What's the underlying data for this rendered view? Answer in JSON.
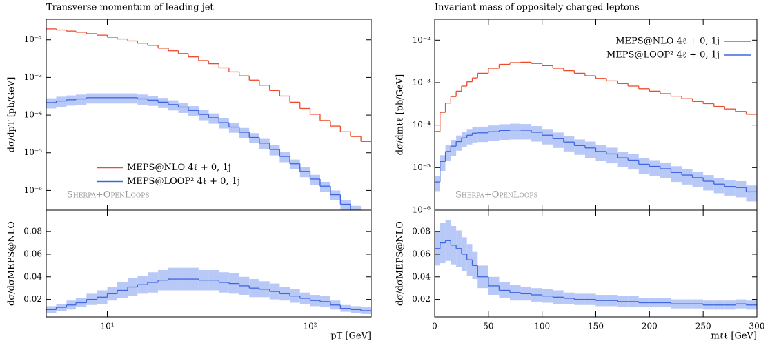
{
  "chart_data": [
    {
      "type": "histogram",
      "title": "Transverse momentum of leading jet",
      "ylabel": "dσ/dpT [pb/GeV]",
      "xlog": true,
      "ylog": true,
      "xlim": [
        5,
        200
      ],
      "ylim": [
        3e-07,
        0.035
      ],
      "xticks": [
        {
          "value": 10,
          "label": "10¹"
        },
        {
          "value": 100,
          "label": "10²"
        }
      ],
      "yticks": [
        {
          "value": 1e-06,
          "label": "10⁻⁶"
        },
        {
          "value": 1e-05,
          "label": "10⁻⁵"
        },
        {
          "value": 0.0001,
          "label": "10⁻⁴"
        },
        {
          "value": 0.001,
          "label": "10⁻³"
        },
        {
          "value": 0.01,
          "label": "10⁻²"
        }
      ],
      "legend": "center-left",
      "annotation": "Sherpa+OpenLoops",
      "bins": [
        5,
        5.6,
        6.3,
        7,
        7.9,
        8.9,
        10,
        11.2,
        12.6,
        14.1,
        15.8,
        17.8,
        20,
        22.4,
        25.1,
        28.2,
        31.6,
        35.5,
        39.8,
        44.7,
        50.1,
        56.2,
        63.1,
        70.8,
        79.4,
        89.1,
        100,
        112,
        126,
        141,
        158,
        178,
        200
      ],
      "series": [
        {
          "name": "MEPS@NLO 4ℓ + 0, 1j",
          "color": "#ee4a2c",
          "values": [
            0.0195,
            0.0182,
            0.017,
            0.0158,
            0.0145,
            0.0132,
            0.0117,
            0.0105,
            0.0093,
            0.0081,
            0.0071,
            0.006,
            0.0051,
            0.0043,
            0.0035,
            0.0028,
            0.0023,
            0.0018,
            0.0014,
            0.0011,
            0.00085,
            0.00062,
            0.00045,
            0.00032,
            0.00022,
            0.00015,
            0.000105,
            7.2e-05,
            5.1e-05,
            3.6e-05,
            2.7e-05,
            2e-05
          ]
        },
        {
          "name": "MEPS@LOOP² 4ℓ + 0, 1j",
          "color": "#3f66e0",
          "band_color": "#b9c9f7",
          "values": [
            0.000215,
            0.000237,
            0.000255,
            0.000269,
            0.00029,
            0.00029,
            0.00029,
            0.00029,
            0.00029,
            0.00027,
            0.00025,
            0.00022,
            0.00019,
            0.000163,
            0.000133,
            0.000104,
            8.5e-05,
            6.3e-05,
            4.8e-05,
            3.5e-05,
            2.55e-05,
            1.8e-05,
            1.22e-05,
            8e-06,
            5.1e-06,
            3.2e-06,
            2e-06,
            1.3e-06,
            7.7e-07,
            4.3e-07,
            3e-07,
            2e-07
          ],
          "errors": [
            6.5e-05,
            7.1e-05,
            7.7e-05,
            8.1e-05,
            8.7e-05,
            8.7e-05,
            8.7e-05,
            8.7e-05,
            8.7e-05,
            8.1e-05,
            7.5e-05,
            6.6e-05,
            5.7e-05,
            4.9e-05,
            4e-05,
            3.1e-05,
            2.6e-05,
            1.9e-05,
            1.4e-05,
            1.05e-05,
            7.7e-06,
            5.4e-06,
            3.7e-06,
            2.4e-06,
            1.5e-06,
            9.6e-07,
            6e-07,
            3.9e-07,
            2.3e-07,
            1.3e-07,
            9e-08,
            6e-08
          ]
        }
      ]
    },
    {
      "type": "histogram",
      "ylabel": "dσ/dσMEPS@NLO",
      "xlabel": "pT [GeV]",
      "xlog": true,
      "ylog": false,
      "xlim": [
        5,
        200
      ],
      "ylim": [
        0.0045,
        0.099
      ],
      "xticks": [
        {
          "value": 10,
          "label": "10¹"
        },
        {
          "value": 100,
          "label": "10²"
        }
      ],
      "yticks": [
        0.02,
        0.04,
        0.06,
        0.08
      ],
      "bins": [
        5,
        5.6,
        6.3,
        7,
        7.9,
        8.9,
        10,
        11.2,
        12.6,
        14.1,
        15.8,
        17.8,
        20,
        22.4,
        25.1,
        28.2,
        31.6,
        35.5,
        39.8,
        44.7,
        50.1,
        56.2,
        63.1,
        70.8,
        79.4,
        89.1,
        100,
        112,
        126,
        141,
        158,
        178,
        200
      ],
      "series": [
        {
          "color": "#3f66e0",
          "band_color": "#b9c9f7",
          "values": [
            0.011,
            0.013,
            0.015,
            0.017,
            0.02,
            0.022,
            0.025,
            0.028,
            0.031,
            0.033,
            0.035,
            0.037,
            0.038,
            0.038,
            0.038,
            0.037,
            0.037,
            0.035,
            0.034,
            0.032,
            0.03,
            0.029,
            0.027,
            0.025,
            0.023,
            0.021,
            0.019,
            0.018,
            0.015,
            0.012,
            0.011,
            0.01
          ],
          "errors": [
            0.003,
            0.003,
            0.004,
            0.004,
            0.005,
            0.006,
            0.006,
            0.007,
            0.008,
            0.008,
            0.009,
            0.009,
            0.01,
            0.01,
            0.01,
            0.009,
            0.009,
            0.009,
            0.009,
            0.008,
            0.008,
            0.007,
            0.007,
            0.006,
            0.006,
            0.005,
            0.005,
            0.005,
            0.004,
            0.003,
            0.003,
            0.003
          ]
        }
      ]
    },
    {
      "type": "histogram",
      "title": "Invariant mass of oppositely charged leptons",
      "ylabel": "dσ/dmℓℓ [pb/GeV]",
      "xlog": false,
      "ylog": true,
      "xlim": [
        0,
        300
      ],
      "ylim": [
        1e-06,
        0.031
      ],
      "xticks": [
        0,
        50,
        100,
        150,
        200,
        250,
        300
      ],
      "yticks": [
        {
          "value": 1e-06,
          "label": "10⁻⁶"
        },
        {
          "value": 1e-05,
          "label": "10⁻⁵"
        },
        {
          "value": 0.0001,
          "label": "10⁻⁴"
        },
        {
          "value": 0.001,
          "label": "10⁻³"
        },
        {
          "value": 0.01,
          "label": "10⁻²"
        }
      ],
      "legend": "upper-right",
      "annotation": "Sherpa+OpenLoops",
      "bins": [
        0,
        5,
        10,
        15,
        20,
        25,
        30,
        35,
        40,
        50,
        60,
        70,
        80,
        90,
        100,
        110,
        120,
        130,
        140,
        150,
        160,
        170,
        180,
        190,
        200,
        210,
        220,
        230,
        240,
        250,
        260,
        270,
        280,
        290,
        300
      ],
      "series": [
        {
          "name": "MEPS@NLO 4ℓ + 0, 1j",
          "color": "#ee4a2c",
          "values": [
            7.1e-05,
            0.0002,
            0.00033,
            0.00047,
            0.00063,
            0.00083,
            0.00105,
            0.00129,
            0.00166,
            0.00219,
            0.00269,
            0.00295,
            0.00302,
            0.00282,
            0.00251,
            0.00219,
            0.00191,
            0.00166,
            0.00145,
            0.00126,
            0.0011,
            0.00095,
            0.00083,
            0.00072,
            0.00063,
            0.00055,
            0.00048,
            0.00042,
            0.00036,
            0.00032,
            0.000275,
            0.00024,
            0.00021,
            0.00018
          ]
        },
        {
          "name": "MEPS@LOOP² 4ℓ + 0, 1j",
          "color": "#3f66e0",
          "band_color": "#b9c9f7",
          "values": [
            4.6e-06,
            1.4e-05,
            2.4e-05,
            3.2e-05,
            4.1e-05,
            5e-05,
            5.8e-05,
            6.5e-05,
            6.6e-05,
            7e-05,
            7.5e-05,
            7.7e-05,
            7.6e-05,
            6.8e-05,
            5.8e-05,
            4.8e-05,
            4e-05,
            3.3e-05,
            2.9e-05,
            2.4e-05,
            2.1e-05,
            1.7e-05,
            1.5e-05,
            1.2e-05,
            1.07e-05,
            9.4e-06,
            7.7e-06,
            6.7e-06,
            5.8e-06,
            4.8e-06,
            4.1e-06,
            3.6e-06,
            3.4e-06,
            2.7e-06
          ],
          "errors": [
            1.8e-06,
            5.6e-06,
            9.6e-06,
            1.3e-05,
            1.6e-05,
            2e-05,
            2.3e-05,
            2.6e-05,
            2.6e-05,
            2.8e-05,
            3e-05,
            3.1e-05,
            3e-05,
            2.7e-05,
            2.3e-05,
            1.9e-05,
            1.6e-05,
            1.3e-05,
            1.2e-05,
            9.6e-06,
            8.4e-06,
            6.8e-06,
            6e-06,
            4.8e-06,
            4.3e-06,
            3.8e-06,
            3.1e-06,
            2.7e-06,
            2.3e-06,
            1.9e-06,
            1.6e-06,
            1.4e-06,
            1.4e-06,
            1.1e-06
          ]
        }
      ]
    },
    {
      "type": "histogram",
      "ylabel": "dσ/dσMEPS@NLO",
      "xlabel": "mℓℓ [GeV]",
      "xlog": false,
      "ylog": false,
      "xlim": [
        0,
        300
      ],
      "ylim": [
        0.0045,
        0.099
      ],
      "xticks": [
        0,
        50,
        100,
        150,
        200,
        250,
        300
      ],
      "yticks": [
        0.02,
        0.04,
        0.06,
        0.08
      ],
      "bins": [
        0,
        5,
        10,
        15,
        20,
        25,
        30,
        35,
        40,
        50,
        60,
        70,
        80,
        90,
        100,
        110,
        120,
        130,
        140,
        150,
        160,
        170,
        180,
        190,
        200,
        210,
        220,
        230,
        240,
        250,
        260,
        270,
        280,
        290,
        300
      ],
      "series": [
        {
          "color": "#3f66e0",
          "band_color": "#b9c9f7",
          "values": [
            0.065,
            0.07,
            0.072,
            0.068,
            0.065,
            0.06,
            0.055,
            0.05,
            0.04,
            0.032,
            0.028,
            0.026,
            0.025,
            0.024,
            0.023,
            0.022,
            0.021,
            0.02,
            0.02,
            0.019,
            0.019,
            0.018,
            0.018,
            0.017,
            0.017,
            0.017,
            0.016,
            0.016,
            0.016,
            0.015,
            0.015,
            0.015,
            0.016,
            0.015
          ],
          "errors": [
            0.015,
            0.018,
            0.018,
            0.017,
            0.016,
            0.015,
            0.014,
            0.012,
            0.01,
            0.008,
            0.007,
            0.007,
            0.006,
            0.006,
            0.006,
            0.006,
            0.005,
            0.005,
            0.005,
            0.005,
            0.005,
            0.005,
            0.005,
            0.004,
            0.004,
            0.004,
            0.004,
            0.004,
            0.004,
            0.004,
            0.004,
            0.004,
            0.004,
            0.004
          ]
        }
      ]
    }
  ]
}
